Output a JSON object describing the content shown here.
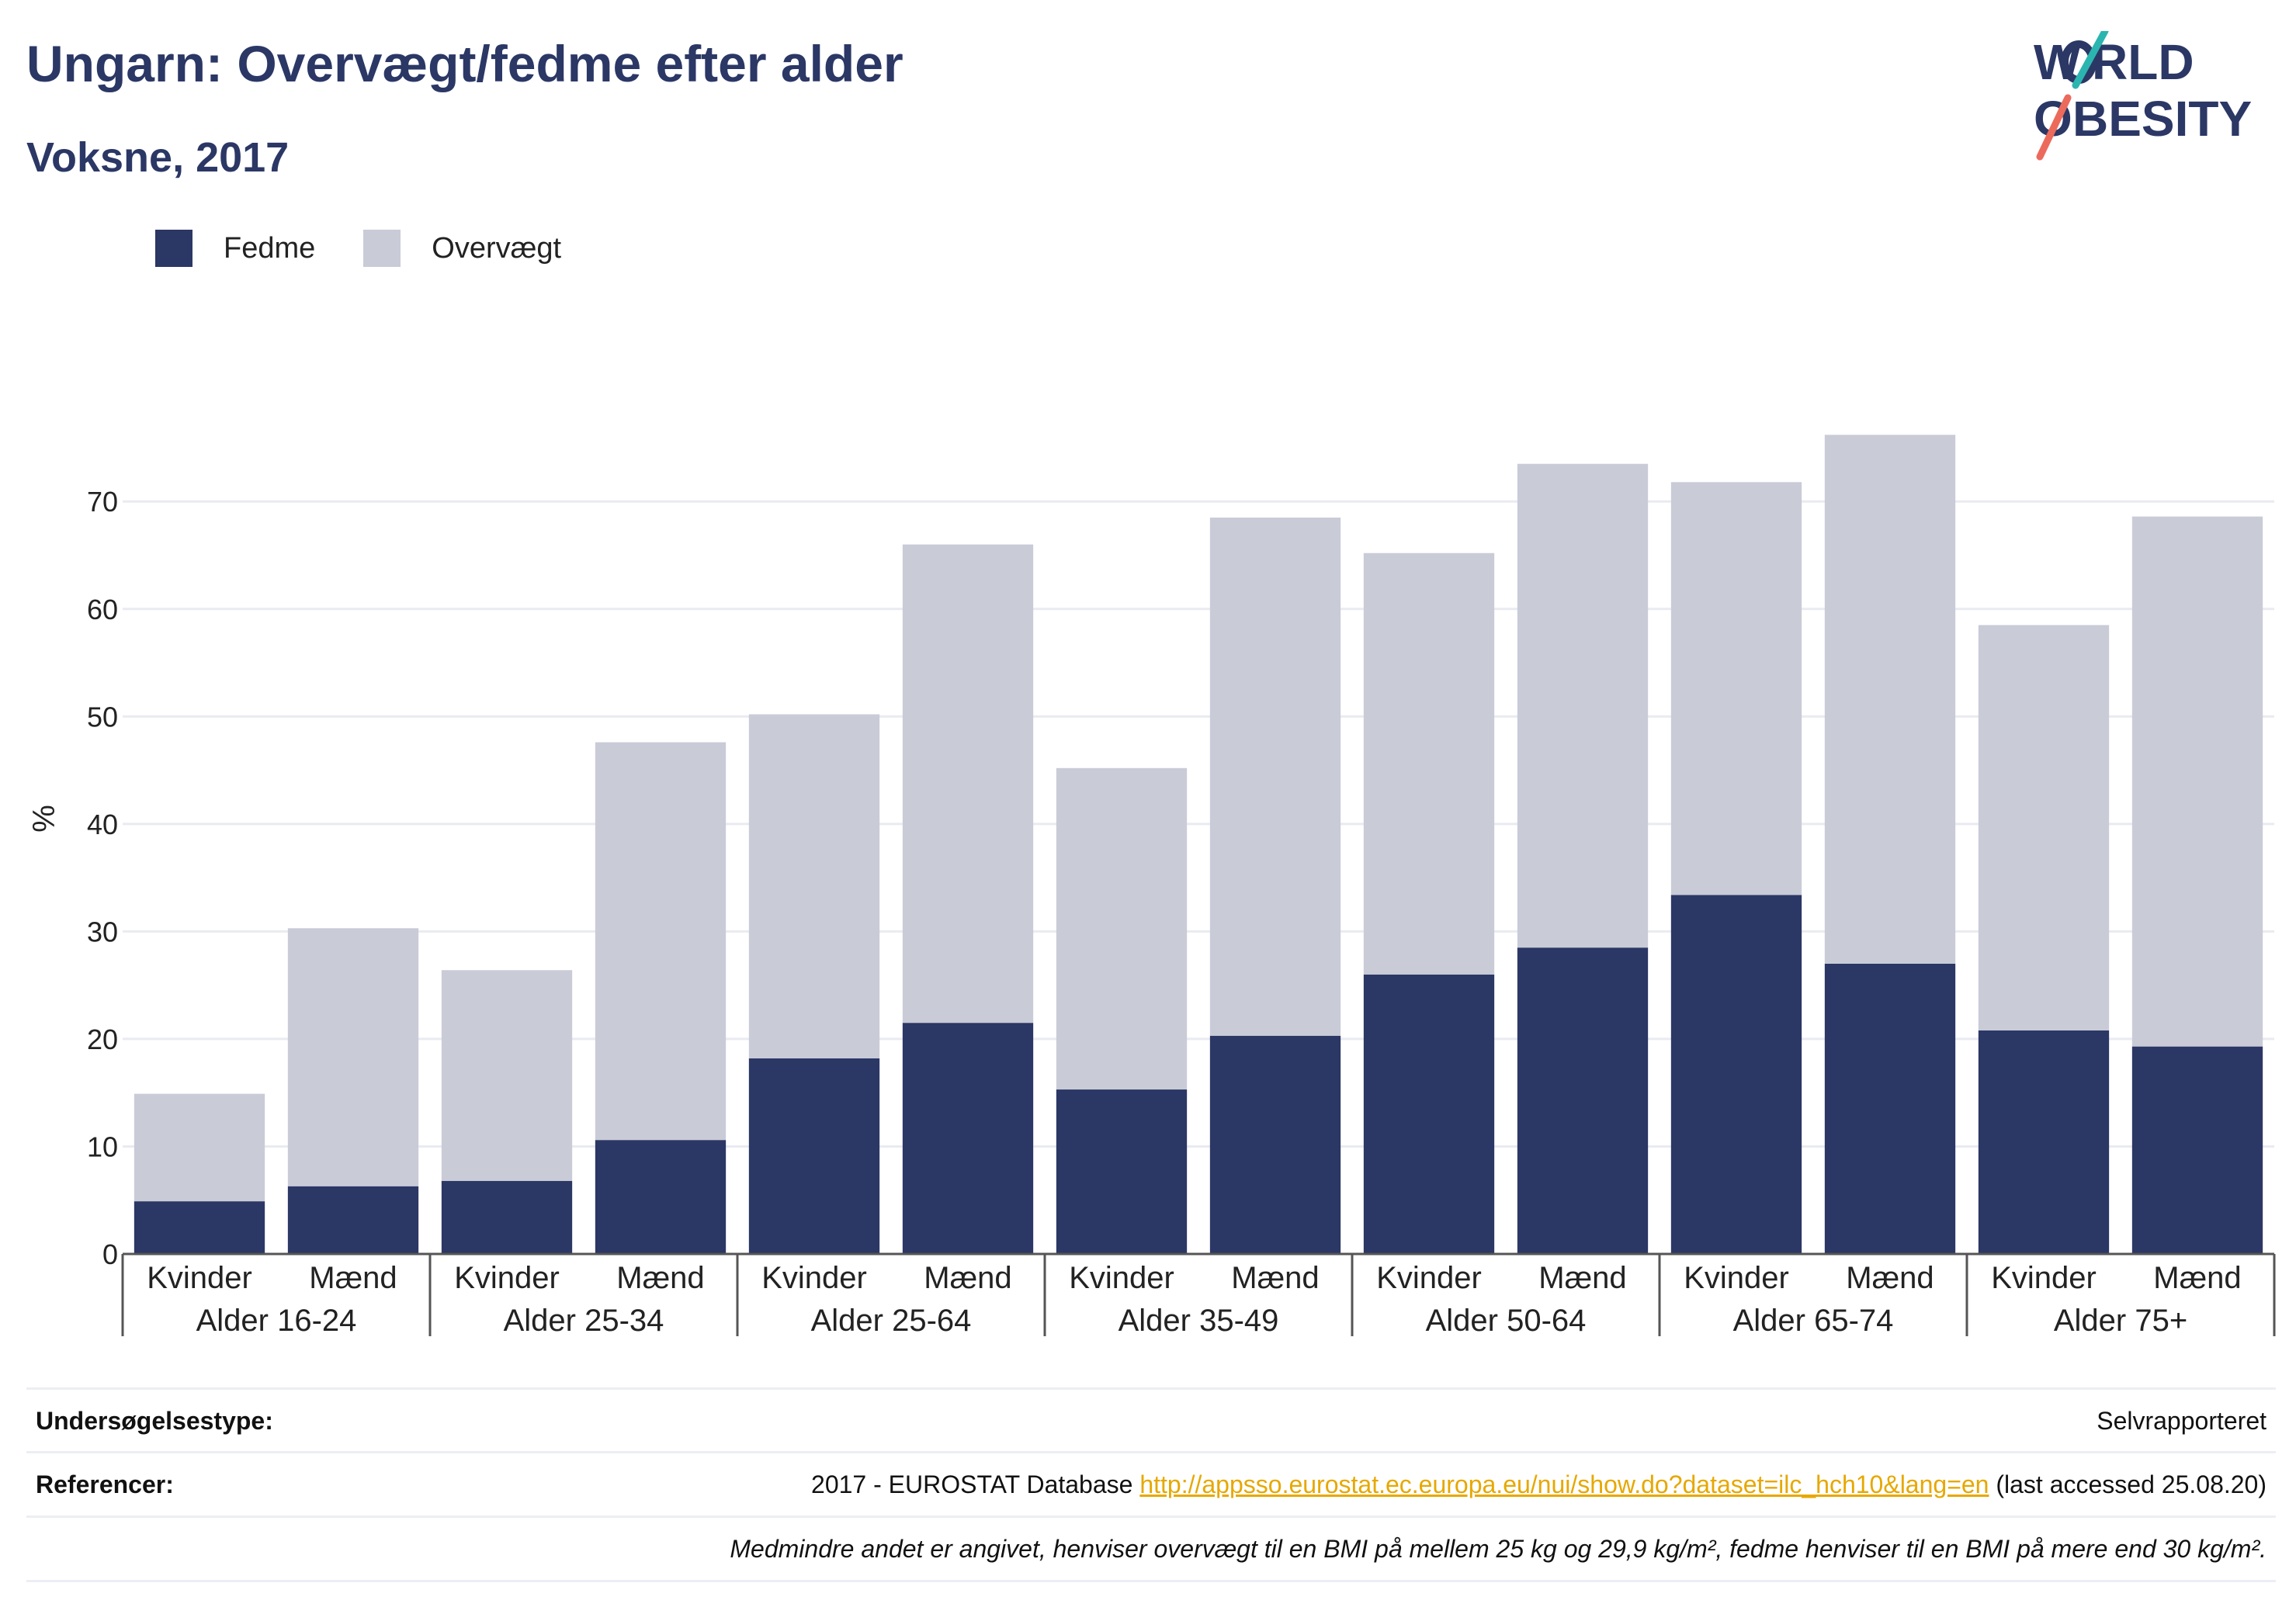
{
  "header": {
    "title": "Ungarn: Overvægt/fedme efter alder",
    "subtitle": "Voksne, 2017"
  },
  "logo": {
    "line1": "WORLD",
    "line2": "OBESITY"
  },
  "colors": {
    "fedme": "#2b3765",
    "overvaegt": "#c9cbd7",
    "grid": "#e9ebf1",
    "axis": "#555555",
    "link": "#e6a800",
    "logo_teal": "#2bb5b0",
    "logo_coral": "#ec6a5c"
  },
  "chart_data": {
    "type": "bar",
    "stacked": true,
    "ylabel": "%",
    "ylim": [
      0,
      82
    ],
    "yticks": [
      0,
      10,
      20,
      30,
      40,
      50,
      60,
      70
    ],
    "grid": true,
    "legend_placement": "top-left",
    "groups": [
      "Alder 16-24",
      "Alder 25-34",
      "Alder 25-64",
      "Alder 35-49",
      "Alder 50-64",
      "Alder 65-74",
      "Alder 75+"
    ],
    "subcategories": [
      "Kvinder",
      "Mænd"
    ],
    "series": [
      {
        "name": "Fedme",
        "values": [
          4.9,
          6.3,
          6.8,
          10.6,
          18.2,
          21.5,
          15.3,
          20.3,
          26.0,
          28.5,
          33.4,
          27.0,
          20.8,
          19.3
        ]
      },
      {
        "name": "Overvægt",
        "values": [
          10.0,
          24.0,
          19.6,
          37.0,
          32.0,
          44.5,
          29.9,
          48.2,
          39.2,
          45.0,
          38.4,
          49.2,
          37.7,
          49.3
        ]
      }
    ]
  },
  "footer": {
    "survey_label": "Undersøgelsestype:",
    "survey_value": "Selvrapporteret",
    "ref_label": "Referencer:",
    "ref_prefix": "2017 - EUROSTAT Database ",
    "ref_link": "http://appsso.eurostat.ec.europa.eu/nui/show.do?dataset=ilc_hch10&lang=en",
    "ref_suffix": " (last accessed 25.08.20)",
    "note": "Medmindre andet er angivet, henviser overvægt til en BMI på mellem 25 kg og 29,9 kg/m², fedme henviser til en BMI på mere end 30 kg/m²."
  }
}
